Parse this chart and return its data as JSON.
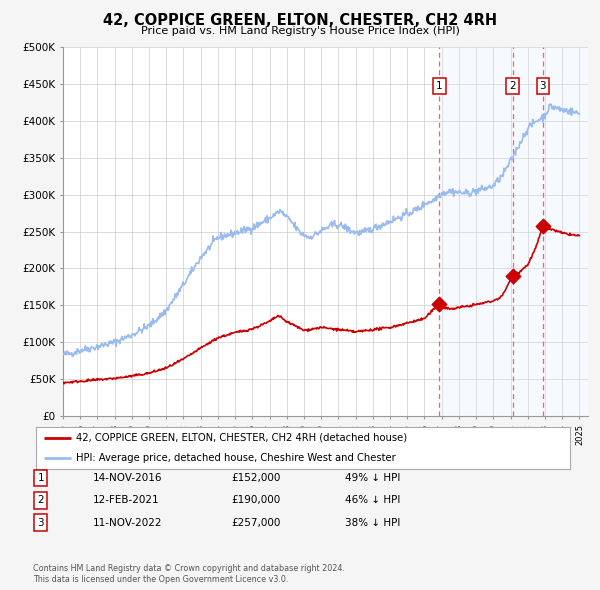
{
  "title": "42, COPPICE GREEN, ELTON, CHESTER, CH2 4RH",
  "subtitle": "Price paid vs. HM Land Registry's House Price Index (HPI)",
  "ylim": [
    0,
    500000
  ],
  "yticks": [
    0,
    50000,
    100000,
    150000,
    200000,
    250000,
    300000,
    350000,
    400000,
    450000,
    500000
  ],
  "ytick_labels": [
    "£0",
    "£50K",
    "£100K",
    "£150K",
    "£200K",
    "£250K",
    "£300K",
    "£350K",
    "£400K",
    "£450K",
    "£500K"
  ],
  "xlim_start": 1995.0,
  "xlim_end": 2025.5,
  "xticks": [
    1995,
    1996,
    1997,
    1998,
    1999,
    2000,
    2001,
    2002,
    2003,
    2004,
    2005,
    2006,
    2007,
    2008,
    2009,
    2010,
    2011,
    2012,
    2013,
    2014,
    2015,
    2016,
    2017,
    2018,
    2019,
    2020,
    2021,
    2022,
    2023,
    2024,
    2025
  ],
  "bg_color": "#f5f5f5",
  "plot_bg_color": "#ffffff",
  "grid_color": "#cccccc",
  "hpi_color": "#99bbee",
  "price_color": "#cc0000",
  "dashed_line_color": "#ee6666",
  "shade_color": "#ddeeff",
  "sales": [
    {
      "date_num": 2016.87,
      "price": 152000,
      "label": "1"
    },
    {
      "date_num": 2021.12,
      "price": 190000,
      "label": "2"
    },
    {
      "date_num": 2022.87,
      "price": 257000,
      "label": "3"
    }
  ],
  "table_rows": [
    {
      "num": "1",
      "date": "14-NOV-2016",
      "price": "£152,000",
      "pct": "49% ↓ HPI"
    },
    {
      "num": "2",
      "date": "12-FEB-2021",
      "price": "£190,000",
      "pct": "46% ↓ HPI"
    },
    {
      "num": "3",
      "date": "11-NOV-2022",
      "price": "£257,000",
      "pct": "38% ↓ HPI"
    }
  ],
  "footer1": "Contains HM Land Registry data © Crown copyright and database right 2024.",
  "footer2": "This data is licensed under the Open Government Licence v3.0.",
  "legend_line1": "42, COPPICE GREEN, ELTON, CHESTER, CH2 4RH (detached house)",
  "legend_line2": "HPI: Average price, detached house, Cheshire West and Chester"
}
